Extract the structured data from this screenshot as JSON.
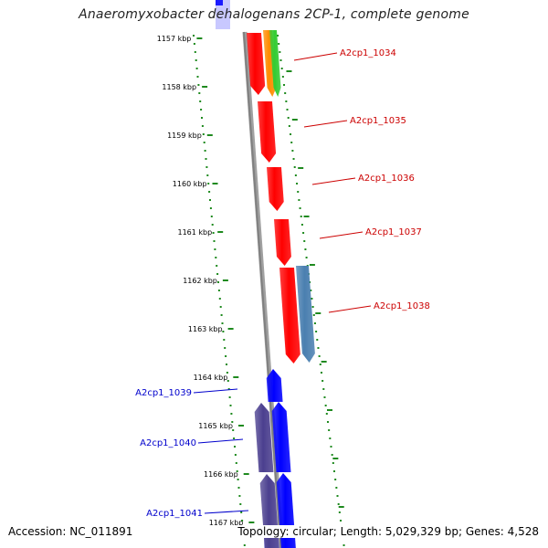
{
  "title": "Anaeromyxobacter dehalogenans 2CP-1, complete genome",
  "footer": {
    "accession": "Accession: NC_011891",
    "summary": "Topology: circular; Length: 5,029,329 bp; Genes: 4,528"
  },
  "colors": {
    "backbone": "#808080",
    "tick": "#1f8a1f",
    "gene_red": "#ff0000",
    "gene_orange": "#ff8c00",
    "gene_green": "#33cc33",
    "gene_steel": "#4a7fb0",
    "gene_blue": "#0000ff",
    "gene_purple": "#4b3f8f",
    "label_red": "#cc0000",
    "label_blue": "#0000cc"
  },
  "ruler": {
    "labels": [
      "1157 kbp",
      "1158 kbp",
      "1159 kbp",
      "1160 kbp",
      "1161 kbp",
      "1162 kbp",
      "1163 kbp",
      "1164 kbp",
      "1165 kbp",
      "1166 kbp",
      "1167 kbp"
    ]
  },
  "gene_labels": [
    {
      "text": "A2cp1_1034",
      "color": "red"
    },
    {
      "text": "A2cp1_1035",
      "color": "red"
    },
    {
      "text": "A2cp1_1036",
      "color": "red"
    },
    {
      "text": "A2cp1_1037",
      "color": "red"
    },
    {
      "text": "A2cp1_1038",
      "color": "red"
    },
    {
      "text": "A2cp1_1039",
      "color": "blue"
    },
    {
      "text": "A2cp1_1040",
      "color": "blue"
    },
    {
      "text": "A2cp1_1041",
      "color": "blue"
    }
  ]
}
